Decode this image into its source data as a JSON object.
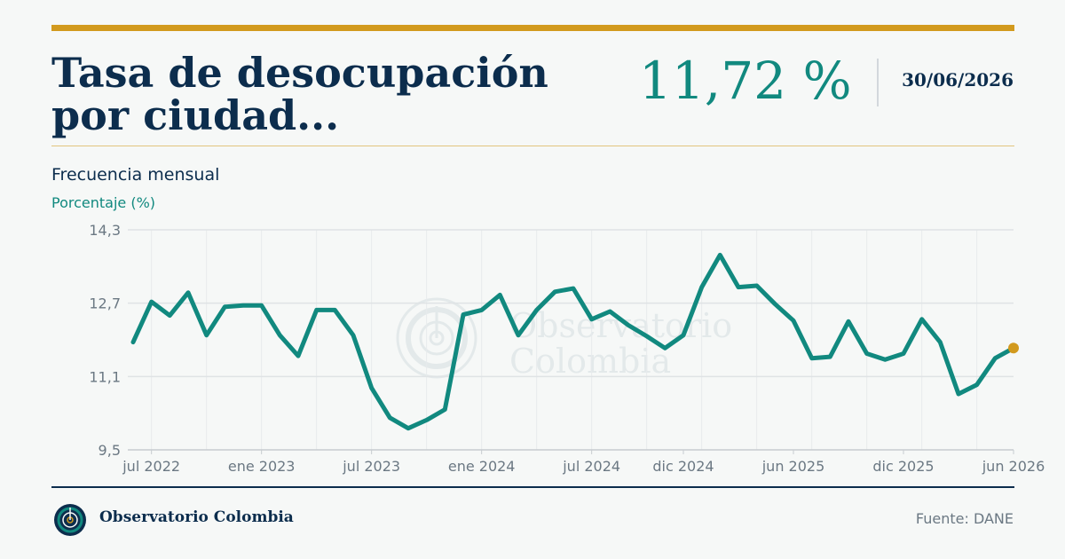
{
  "header": {
    "title": "Tasa de desocupación por ciudad...",
    "value": "11,72 %",
    "date": "30/06/2026"
  },
  "subheader": {
    "frequency": "Frecuencia mensual",
    "unit": "Porcentaje (%)"
  },
  "watermark": {
    "line1": "Observatorio",
    "line2": "Colombia"
  },
  "footer": {
    "brand": "Observatorio Colombia",
    "source": "Fuente: DANE"
  },
  "colors": {
    "accent_gold": "#d29a1e",
    "line_teal": "#11897f",
    "navy": "#0c2d4d",
    "grid": "#dfe3e5"
  },
  "icons": {
    "footer_logo": "observatorio-logo-icon",
    "watermark_logo": "observatorio-logo-icon"
  },
  "chart_data": {
    "type": "line",
    "title": "",
    "xlabel": "",
    "ylabel": "Porcentaje (%)",
    "ylim": [
      9.5,
      14.3
    ],
    "yticks": [
      "9,5",
      "11,1",
      "12,7",
      "14,3"
    ],
    "ytick_values": [
      9.5,
      11.1,
      12.7,
      14.3
    ],
    "xlim": [
      "2022-06",
      "2026-06"
    ],
    "xticks": [
      {
        "label": "jul 2022",
        "x": "2022-07"
      },
      {
        "label": "ene 2023",
        "x": "2023-01"
      },
      {
        "label": "jul 2023",
        "x": "2023-07"
      },
      {
        "label": "ene 2024",
        "x": "2024-01"
      },
      {
        "label": "jul 2024",
        "x": "2024-07"
      },
      {
        "label": "dic 2024",
        "x": "2024-12"
      },
      {
        "label": "jun 2025",
        "x": "2025-06"
      },
      {
        "label": "dic 2025",
        "x": "2025-12"
      },
      {
        "label": "jun 2026",
        "x": "2026-06"
      }
    ],
    "grid": true,
    "series": [
      {
        "x": [
          "2022-06",
          "2022-07",
          "2022-08",
          "2022-09",
          "2022-10",
          "2022-11",
          "2022-12",
          "2023-01",
          "2023-02",
          "2023-03",
          "2023-04",
          "2023-05",
          "2023-06",
          "2023-07",
          "2023-08",
          "2023-09",
          "2023-10",
          "2023-11",
          "2023-12",
          "2024-01",
          "2024-02",
          "2024-03",
          "2024-04",
          "2024-05",
          "2024-06",
          "2024-07",
          "2024-08",
          "2024-09",
          "2024-10",
          "2024-11",
          "2024-12",
          "2025-01",
          "2025-02",
          "2025-03",
          "2025-04",
          "2025-05",
          "2025-06",
          "2025-07",
          "2025-08",
          "2025-09",
          "2025-10",
          "2025-11",
          "2025-12",
          "2026-01",
          "2026-02",
          "2026-03",
          "2026-04",
          "2026-05",
          "2026-06"
        ],
        "values": [
          11.85,
          12.73,
          12.43,
          12.93,
          12.0,
          12.62,
          12.65,
          12.65,
          12.0,
          11.55,
          12.55,
          12.55,
          12.0,
          10.85,
          10.2,
          9.97,
          10.15,
          10.38,
          12.45,
          12.55,
          12.88,
          12.0,
          12.55,
          12.95,
          13.02,
          12.35,
          12.52,
          12.22,
          11.98,
          11.72,
          12.0,
          13.05,
          13.75,
          13.05,
          13.08,
          12.68,
          12.32,
          11.5,
          11.53,
          12.3,
          11.6,
          11.47,
          11.6,
          12.35,
          11.85,
          10.72,
          10.92,
          11.5,
          11.72
        ]
      }
    ],
    "last_point_color": "#d29a1e"
  }
}
